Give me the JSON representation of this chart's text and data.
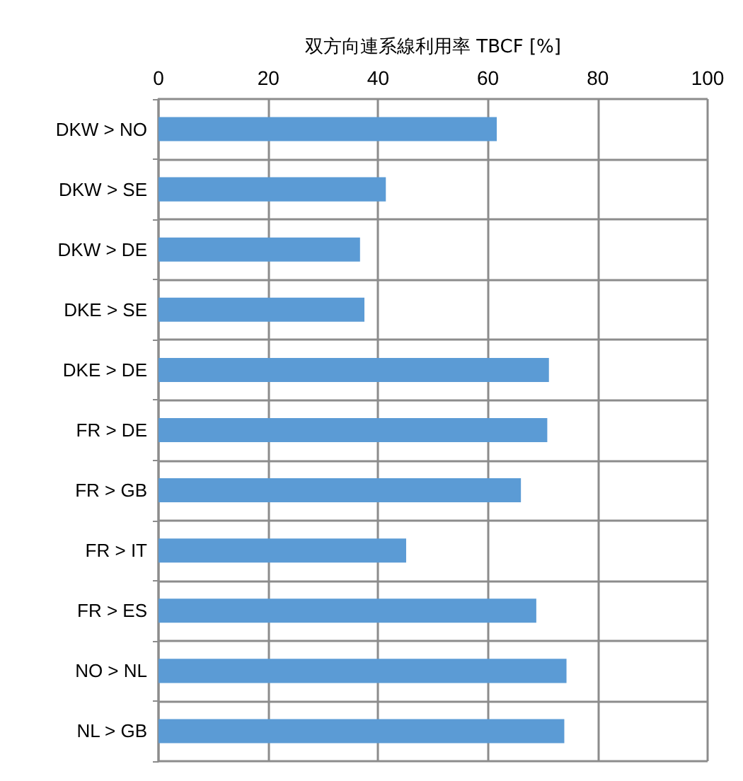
{
  "chart_data": {
    "type": "bar",
    "orientation": "horizontal",
    "xlabel": "双方向連系線利用率 TBCF [%]",
    "categories": [
      "DKW > NO",
      "DKW > SE",
      "DKW > DE",
      "DKE > SE",
      "DKE > DE",
      "FR > DE",
      "FR > GB",
      "FR > IT",
      "FR > ES",
      "NO > NL",
      "NL > GB"
    ],
    "values": [
      61.6,
      41.4,
      36.7,
      37.5,
      71.1,
      70.8,
      66.0,
      45.1,
      68.8,
      74.3,
      73.9
    ],
    "color": "#5b9bd5",
    "xlim": [
      0,
      100
    ],
    "xticks": [
      0,
      20,
      40,
      60,
      80,
      100
    ],
    "grid": true
  }
}
